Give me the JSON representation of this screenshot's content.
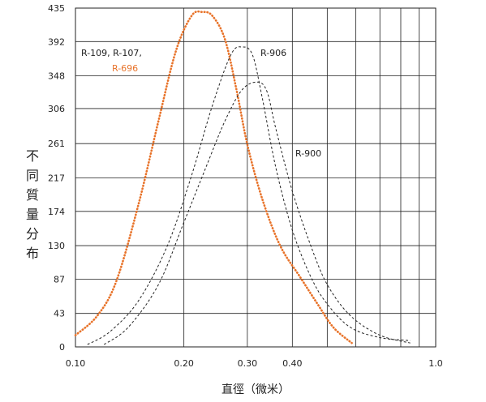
{
  "chart_data": {
    "type": "line",
    "xlabel": "直徑（微米）",
    "ylabel": "不同質量分布",
    "x_scale": "log",
    "xlim": [
      0.1,
      1.0
    ],
    "ylim": [
      0,
      435
    ],
    "x_ticks": [
      {
        "value": 0.1,
        "label": "0.10"
      },
      {
        "value": 0.2,
        "label": "0.20"
      },
      {
        "value": 0.3,
        "label": "0.30"
      },
      {
        "value": 0.4,
        "label": "0.40"
      },
      {
        "value": 1.0,
        "label": "1.0"
      }
    ],
    "x_gridlines": [
      0.1,
      0.2,
      0.3,
      0.4,
      0.5,
      0.6,
      0.7,
      0.8,
      0.9,
      1.0
    ],
    "y_ticks": [
      0,
      43,
      87,
      130,
      174,
      217,
      261,
      306,
      348,
      392,
      435
    ],
    "grid": true,
    "colors": {
      "accent": "#e8732a",
      "dark": "#222222",
      "grid": "#222222"
    },
    "series": [
      {
        "name": "R-696",
        "color": "#e8732a",
        "style": "dotted",
        "x": [
          0.1,
          0.115,
          0.13,
          0.15,
          0.17,
          0.19,
          0.21,
          0.225,
          0.24,
          0.26,
          0.28,
          0.3,
          0.33,
          0.37,
          0.42,
          0.47,
          0.52,
          0.585
        ],
        "y": [
          15,
          40,
          85,
          185,
          290,
          380,
          425,
          430,
          425,
          395,
          330,
          260,
          190,
          130,
          90,
          55,
          25,
          5
        ]
      },
      {
        "name": "R-906",
        "color": "#222222",
        "style": "dashed",
        "x": [
          0.108,
          0.125,
          0.15,
          0.18,
          0.21,
          0.24,
          0.27,
          0.29,
          0.31,
          0.33,
          0.36,
          0.4,
          0.45,
          0.5,
          0.58,
          0.7,
          0.85
        ],
        "y": [
          3,
          20,
          60,
          130,
          220,
          310,
          375,
          385,
          375,
          320,
          230,
          150,
          90,
          55,
          25,
          12,
          8
        ]
      },
      {
        "name": "R-900",
        "color": "#222222",
        "style": "dashed",
        "x": [
          0.12,
          0.14,
          0.17,
          0.2,
          0.23,
          0.26,
          0.29,
          0.32,
          0.34,
          0.36,
          0.4,
          0.45,
          0.5,
          0.58,
          0.7,
          0.85
        ],
        "y": [
          3,
          25,
          80,
          160,
          230,
          290,
          330,
          340,
          328,
          280,
          200,
          130,
          80,
          40,
          15,
          5
        ]
      }
    ],
    "annotations": [
      {
        "text": "R-109, R-107,",
        "color": "#222222"
      },
      {
        "text": "R-696",
        "color": "#e8732a"
      },
      {
        "text": "R-906",
        "color": "#222222"
      },
      {
        "text": "R-900",
        "color": "#222222"
      }
    ]
  }
}
